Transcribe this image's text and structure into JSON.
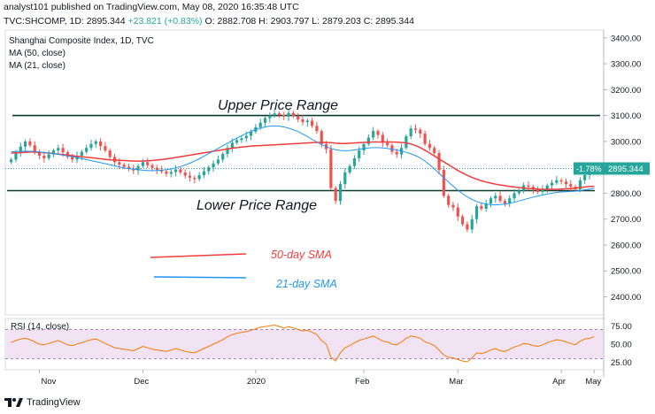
{
  "header": {
    "published": "analyst101 published on TradingView.com, May 08, 2020 16:35:48 UTC",
    "symbol": "TVC:SHCOMP, 1D",
    "last": "2895.344",
    "change": "+23.821 (+0.83%)",
    "ohlc": "O: 2882.708 H: 2903.797 L: 2879.203 C: 2895.344"
  },
  "legend": {
    "title": "Shanghai Composite Index, 1D, TVC",
    "ma50": "MA (50, close)",
    "ma21": "MA (21, close)",
    "rsi": "RSI (14, close)"
  },
  "annotations": {
    "upper": "Upper Price Range",
    "lower": "Lower Price Range",
    "sma50": "50-day SMA",
    "sma21": "21-day SMA"
  },
  "price_tags": {
    "pct": "-1.78%",
    "price": "2895.344"
  },
  "footer": {
    "brand": "TradingView"
  },
  "colors": {
    "up": "#26a69a",
    "down": "#ef5350",
    "ma50": "#f23c3c",
    "ma21": "#2196f3",
    "rsi": "#f57c00",
    "rsi_band": "#e1bee7",
    "level": "#0b3d2e"
  },
  "chart_data": [
    {
      "type": "candlestick",
      "title": "Shanghai Composite Index, 1D, TVC",
      "y_ticks": [
        2400,
        2500,
        2600,
        2700,
        2800,
        2900,
        3000,
        3100,
        3200,
        3300,
        3400
      ],
      "ylim": [
        2330,
        3430
      ],
      "x_ticks": [
        "Nov",
        "Dec",
        "2020",
        "Feb",
        "Mar",
        "Apr",
        "May"
      ],
      "closes": [
        2930,
        2955,
        2980,
        3000,
        2985,
        2960,
        2945,
        2935,
        2950,
        2965,
        2975,
        2958,
        2940,
        2930,
        2945,
        2960,
        2975,
        2990,
        3000,
        2982,
        2965,
        2940,
        2920,
        2910,
        2902,
        2895,
        2888,
        2905,
        2920,
        2908,
        2898,
        2890,
        2884,
        2875,
        2882,
        2892,
        2880,
        2868,
        2860,
        2855,
        2870,
        2885,
        2900,
        2915,
        2930,
        2952,
        2975,
        2995,
        3005,
        3012,
        3022,
        3038,
        3055,
        3072,
        3090,
        3100,
        3108,
        3102,
        3096,
        3110,
        3098,
        3085,
        3075,
        3080,
        3060,
        3040,
        2990,
        2970,
        2820,
        2770,
        2835,
        2880,
        2905,
        2935,
        2965,
        2990,
        3015,
        3040,
        3025,
        2995,
        2985,
        2960,
        2950,
        2975,
        3020,
        3050,
        3045,
        3030,
        2990,
        2975,
        2955,
        2890,
        2790,
        2755,
        2745,
        2710,
        2680,
        2660,
        2700,
        2750,
        2740,
        2760,
        2780,
        2790,
        2770,
        2760,
        2780,
        2800,
        2810,
        2830,
        2825,
        2815,
        2805,
        2815,
        2830,
        2840,
        2850,
        2845,
        2835,
        2825,
        2815,
        2850,
        2870,
        2880,
        2895
      ],
      "series": [
        {
          "name": "MA (50, close)",
          "values": [
            2955,
            2956,
            2957,
            2958,
            2959,
            2959,
            2958,
            2957,
            2955,
            2953,
            2951,
            2949,
            2947,
            2945,
            2943,
            2941,
            2939,
            2937,
            2935,
            2933,
            2931,
            2929,
            2928,
            2927,
            2926,
            2925,
            2924,
            2924,
            2924,
            2925,
            2926,
            2928,
            2930,
            2932,
            2935,
            2938,
            2941,
            2944,
            2947,
            2950,
            2953,
            2956,
            2959,
            2962,
            2965,
            2968,
            2971,
            2974,
            2976,
            2978,
            2980,
            2982,
            2983,
            2984,
            2985,
            2986,
            2987,
            2988,
            2989,
            2990,
            2991,
            2992,
            2993,
            2994,
            2995,
            2996,
            2996,
            2996,
            2995,
            2993,
            2992,
            2992,
            2993,
            2994,
            2995,
            2996,
            2997,
            2998,
            2998,
            2998,
            2998,
            2998,
            2997,
            2996,
            2994,
            2990,
            2984,
            2976,
            2966,
            2955,
            2944,
            2932,
            2921,
            2910,
            2899,
            2888,
            2878,
            2869,
            2861,
            2854,
            2848,
            2843,
            2839,
            2835,
            2832,
            2829,
            2826,
            2824,
            2822,
            2820,
            2818,
            2817,
            2816,
            2815,
            2815,
            2815,
            2815,
            2816,
            2817,
            2818,
            2820,
            2822,
            2824,
            2826,
            2827
          ]
        },
        {
          "name": "MA (21, close)",
          "values": [
            2960,
            2961,
            2962,
            2962,
            2962,
            2961,
            2959,
            2957,
            2955,
            2953,
            2950,
            2947,
            2944,
            2941,
            2938,
            2934,
            2930,
            2926,
            2922,
            2918,
            2914,
            2910,
            2906,
            2902,
            2898,
            2895,
            2893,
            2891,
            2889,
            2888,
            2887,
            2888,
            2889,
            2891,
            2894,
            2898,
            2903,
            2909,
            2916,
            2924,
            2933,
            2943,
            2953,
            2963,
            2973,
            2983,
            2993,
            3003,
            3013,
            3022,
            3031,
            3039,
            3046,
            3052,
            3056,
            3059,
            3060,
            3059,
            3056,
            3051,
            3045,
            3038,
            3029,
            3019,
            3008,
            2998,
            2988,
            2980,
            2973,
            2968,
            2965,
            2964,
            2965,
            2967,
            2970,
            2973,
            2975,
            2976,
            2976,
            2975,
            2973,
            2970,
            2967,
            2963,
            2958,
            2952,
            2945,
            2936,
            2924,
            2910,
            2894,
            2877,
            2860,
            2843,
            2827,
            2812,
            2798,
            2786,
            2776,
            2768,
            2762,
            2758,
            2756,
            2755,
            2756,
            2758,
            2761,
            2765,
            2770,
            2775,
            2780,
            2785,
            2789,
            2793,
            2797,
            2800,
            2803,
            2805,
            2806,
            2807,
            2808,
            2810,
            2813,
            2816,
            2820
          ]
        },
        {
          "name": "RSI (14, close)",
          "values": [
            52,
            55,
            57,
            58,
            56,
            53,
            50,
            49,
            51,
            53,
            55,
            52,
            49,
            48,
            50,
            52,
            54,
            56,
            57,
            54,
            51,
            48,
            45,
            44,
            43,
            42,
            41,
            44,
            47,
            45,
            43,
            42,
            41,
            40,
            42,
            44,
            42,
            40,
            39,
            38,
            41,
            44,
            47,
            50,
            53,
            56,
            60,
            63,
            65,
            66,
            67,
            69,
            71,
            73,
            74,
            75,
            76,
            74,
            72,
            74,
            72,
            70,
            68,
            69,
            66,
            63,
            55,
            50,
            32,
            27,
            38,
            45,
            48,
            52,
            55,
            57,
            59,
            61,
            58,
            54,
            53,
            50,
            49,
            53,
            58,
            61,
            60,
            58,
            53,
            51,
            48,
            42,
            35,
            32,
            31,
            29,
            27,
            26,
            31,
            38,
            37,
            39,
            42,
            44,
            41,
            40,
            43,
            46,
            48,
            51,
            50,
            48,
            47,
            49,
            52,
            54,
            56,
            55,
            53,
            51,
            49,
            54,
            57,
            58,
            60
          ]
        }
      ],
      "rsi_ticks": [
        25,
        50,
        75
      ],
      "rsi_ylim": [
        15,
        85
      ],
      "levels": {
        "upper": 3100,
        "lower": 2810
      },
      "current": 2895.344
    }
  ]
}
